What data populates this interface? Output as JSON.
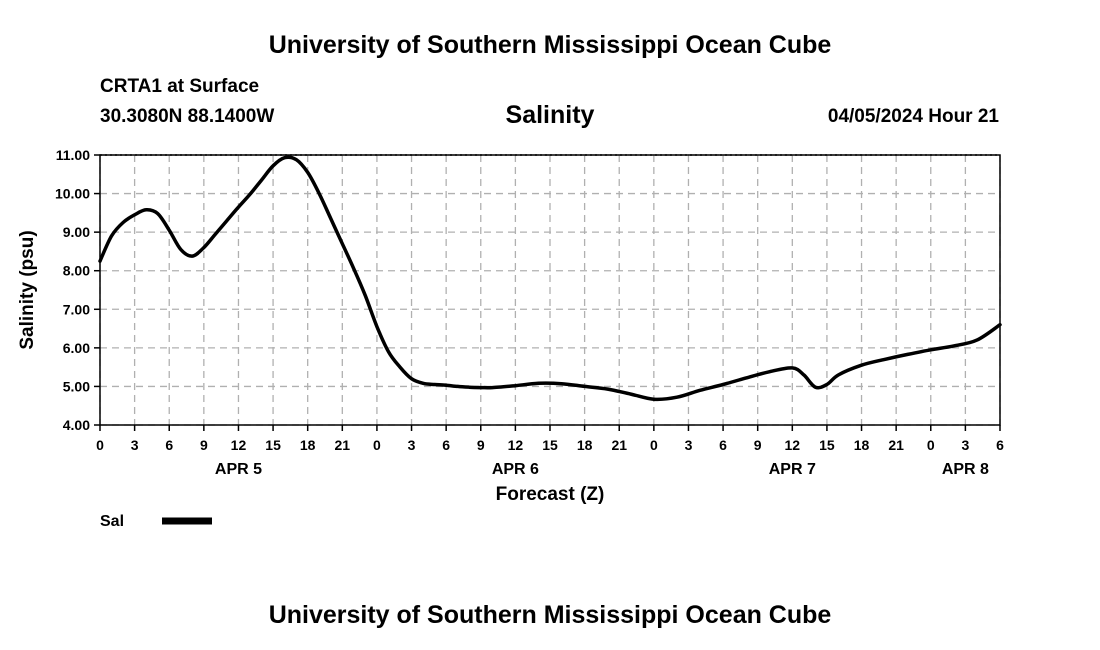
{
  "header": {
    "title": "University of Southern Mississippi Ocean Cube",
    "station": "CRTA1 at Surface",
    "coords": "30.3080N  88.1400W",
    "variable": "Salinity",
    "datetime": "04/05/2024 Hour 21"
  },
  "footer": {
    "title": "University of Southern Mississippi Ocean Cube"
  },
  "chart_data": {
    "type": "line",
    "title": "Salinity",
    "xlabel": "Forecast (Z)",
    "ylabel": "Salinity (psu)",
    "ylim": [
      4.0,
      11.0
    ],
    "y_ticks": [
      "4.00",
      "5.00",
      "6.00",
      "7.00",
      "8.00",
      "9.00",
      "10.00",
      "11.00"
    ],
    "x_range_hours": [
      0,
      78
    ],
    "x_ticks": [
      "0",
      "3",
      "6",
      "9",
      "12",
      "15",
      "18",
      "21",
      "0",
      "3",
      "6",
      "9",
      "12",
      "15",
      "18",
      "21",
      "0",
      "3",
      "6",
      "9",
      "12",
      "15",
      "18",
      "21",
      "0",
      "3",
      "6"
    ],
    "day_labels": [
      {
        "label": "APR 5",
        "hour": 12
      },
      {
        "label": "APR 6",
        "hour": 36
      },
      {
        "label": "APR 7",
        "hour": 60
      },
      {
        "label": "APR 8",
        "hour": 75
      }
    ],
    "grid": true,
    "legend": {
      "position": "bottom-left",
      "label": "Sal"
    },
    "series": [
      {
        "name": "Sal",
        "color": "#000000",
        "x": [
          0,
          1,
          2,
          3,
          4,
          5,
          6,
          7,
          8,
          9,
          10,
          11,
          12,
          13,
          14,
          15,
          16,
          17,
          18,
          19,
          20,
          21,
          22,
          23,
          24,
          25,
          26,
          27,
          28,
          29,
          30,
          31,
          32,
          33,
          34,
          36,
          38,
          40,
          42,
          44,
          46,
          48,
          50,
          52,
          54,
          56,
          58,
          60,
          61,
          62,
          63,
          64,
          66,
          68,
          70,
          72,
          74,
          76,
          78
        ],
        "values": [
          8.25,
          8.9,
          9.25,
          9.45,
          9.58,
          9.48,
          9.05,
          8.55,
          8.38,
          8.6,
          8.95,
          9.3,
          9.65,
          9.98,
          10.35,
          10.72,
          10.93,
          10.88,
          10.55,
          10.0,
          9.35,
          8.7,
          8.05,
          7.35,
          6.55,
          5.9,
          5.5,
          5.2,
          5.08,
          5.05,
          5.03,
          5.0,
          4.98,
          4.97,
          4.97,
          5.02,
          5.08,
          5.07,
          5.0,
          4.93,
          4.8,
          4.67,
          4.72,
          4.9,
          5.05,
          5.22,
          5.38,
          5.48,
          5.3,
          4.98,
          5.05,
          5.3,
          5.55,
          5.7,
          5.83,
          5.95,
          6.05,
          6.2,
          6.6
        ]
      }
    ]
  }
}
